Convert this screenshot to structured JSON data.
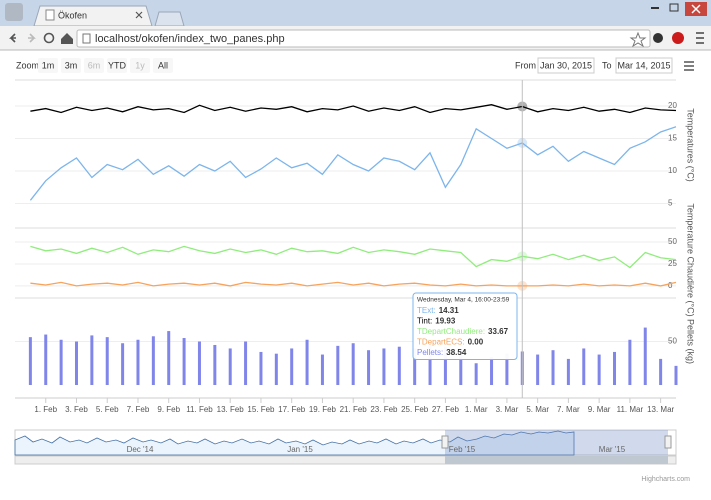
{
  "browser": {
    "tab_title": "Ökofen",
    "url": "localhost/okofen/index_two_panes.php"
  },
  "toolbar": {
    "zoom_label": "Zoom",
    "buttons": [
      "1m",
      "3m",
      "6m",
      "YTD",
      "1y",
      "All"
    ],
    "from_label": "From",
    "from": "Jan 30, 2015",
    "to_label": "To",
    "to": "Mar 14, 2015"
  },
  "chart_data": {
    "type": "line",
    "x": [
      "2015-01-31",
      "2015-02-01",
      "2015-02-02",
      "2015-02-03",
      "2015-02-04",
      "2015-02-05",
      "2015-02-06",
      "2015-02-07",
      "2015-02-08",
      "2015-02-09",
      "2015-02-10",
      "2015-02-11",
      "2015-02-12",
      "2015-02-13",
      "2015-02-14",
      "2015-02-15",
      "2015-02-16",
      "2015-02-17",
      "2015-02-18",
      "2015-02-19",
      "2015-02-20",
      "2015-02-21",
      "2015-02-22",
      "2015-02-23",
      "2015-02-24",
      "2015-02-25",
      "2015-02-26",
      "2015-02-27",
      "2015-02-28",
      "2015-03-01",
      "2015-03-02",
      "2015-03-03",
      "2015-03-04",
      "2015-03-05",
      "2015-03-06",
      "2015-03-07",
      "2015-03-08",
      "2015-03-09",
      "2015-03-10",
      "2015-03-11",
      "2015-03-12",
      "2015-03-13",
      "2015-03-14"
    ],
    "xlim": [
      "2015-01-30",
      "2015-03-14"
    ],
    "xticks": [
      {
        "value": "2015-02-01",
        "label": "1. Feb"
      },
      {
        "value": "2015-02-03",
        "label": "3. Feb"
      },
      {
        "value": "2015-02-05",
        "label": "5. Feb"
      },
      {
        "value": "2015-02-07",
        "label": "7. Feb"
      },
      {
        "value": "2015-02-09",
        "label": "9. Feb"
      },
      {
        "value": "2015-02-11",
        "label": "11. Feb"
      },
      {
        "value": "2015-02-13",
        "label": "13. Feb"
      },
      {
        "value": "2015-02-15",
        "label": "15. Feb"
      },
      {
        "value": "2015-02-17",
        "label": "17. Feb"
      },
      {
        "value": "2015-02-19",
        "label": "19. Feb"
      },
      {
        "value": "2015-02-21",
        "label": "21. Feb"
      },
      {
        "value": "2015-02-23",
        "label": "23. Feb"
      },
      {
        "value": "2015-02-25",
        "label": "25. Feb"
      },
      {
        "value": "2015-02-27",
        "label": "27. Feb"
      },
      {
        "value": "2015-03-01",
        "label": "1. Mar"
      },
      {
        "value": "2015-03-03",
        "label": "3. Mar"
      },
      {
        "value": "2015-03-05",
        "label": "5. Mar"
      },
      {
        "value": "2015-03-07",
        "label": "7. Mar"
      },
      {
        "value": "2015-03-09",
        "label": "9. Mar"
      },
      {
        "value": "2015-03-11",
        "label": "11. Mar"
      },
      {
        "value": "2015-03-13",
        "label": "13. Mar"
      }
    ],
    "panes": [
      {
        "y_label": "Temperatures (°C)",
        "ylim": [
          4,
          24
        ],
        "yticks": [
          5,
          10,
          15,
          20
        ],
        "grid": true,
        "series": [
          {
            "name": "TExt",
            "type": "line",
            "color": "#7cb5ec",
            "values": [
              5.5,
              8.5,
              10.5,
              12.0,
              9.0,
              11.0,
              10.2,
              11.8,
              9.5,
              10.8,
              9.2,
              11.0,
              10.0,
              11.5,
              9.0,
              10.3,
              12.0,
              10.5,
              11.2,
              9.5,
              12.5,
              11.0,
              10.0,
              12.0,
              11.5,
              10.2,
              12.8,
              7.5,
              11.0,
              16.5,
              15.0,
              13.5,
              14.31,
              12.5,
              13.8,
              11.5,
              13.0,
              12.0,
              11.0,
              13.5,
              14.5,
              16.0,
              16.8
            ]
          },
          {
            "name": "Tint",
            "type": "line",
            "color": "#000000",
            "values": [
              19.2,
              19.6,
              19.0,
              19.8,
              19.3,
              19.7,
              19.1,
              19.9,
              19.4,
              19.6,
              19.0,
              20.1,
              19.3,
              19.8,
              19.2,
              19.7,
              19.5,
              19.9,
              19.1,
              19.6,
              19.4,
              20.0,
              19.2,
              19.7,
              19.3,
              19.9,
              19.0,
              19.6,
              19.4,
              19.8,
              20.2,
              19.5,
              19.93,
              19.1,
              19.6,
              19.3,
              19.8,
              19.2,
              19.5,
              19.0,
              19.7,
              19.4,
              19.3
            ]
          }
        ]
      },
      {
        "y_label": "Temperature Chaudière (°C)",
        "ylim": [
          -7,
          66
        ],
        "yticks": [
          0,
          25,
          50
        ],
        "grid": true,
        "series": [
          {
            "name": "TDepartChaudiere",
            "type": "line",
            "color": "#90ed7d",
            "values": [
              45,
              40,
              42,
              37,
              43,
              38,
              44,
              36,
              41,
              39,
              45,
              40,
              37,
              42,
              38,
              41,
              36,
              43,
              39,
              40,
              37,
              44,
              38,
              41,
              39,
              36,
              42,
              40,
              38,
              22,
              30,
              28,
              33.67,
              31,
              36,
              30,
              35,
              29,
              33,
              21,
              38,
              32,
              30
            ]
          },
          {
            "name": "TDepartECS",
            "type": "line",
            "color": "#f7a35c",
            "values": [
              3,
              1,
              4,
              0,
              2,
              3,
              1,
              4,
              0,
              2,
              3,
              1,
              3,
              0,
              4,
              2,
              1,
              3,
              0,
              2,
              4,
              1,
              3,
              0,
              2,
              3,
              1,
              0,
              2,
              0,
              1,
              0,
              0,
              0,
              1,
              0,
              2,
              0,
              1,
              0,
              3,
              0,
              4
            ],
            "value_labels": [
              null,
              null,
              null,
              null,
              null,
              null,
              null,
              null,
              null,
              null,
              null,
              null,
              null,
              null,
              null,
              null,
              null,
              null,
              null,
              null,
              null,
              null,
              null,
              null,
              null,
              null,
              null,
              null,
              null,
              null,
              null,
              null,
              "0.00",
              null,
              null,
              null,
              null,
              null,
              null,
              null,
              null,
              null,
              null
            ]
          }
        ]
      },
      {
        "y_label": "Pellets (kg)",
        "ylim": [
          0,
          100
        ],
        "yticks": [
          50
        ],
        "grid": true,
        "series": [
          {
            "name": "Pellets",
            "type": "column",
            "color": "#8085e9",
            "values": [
              55,
              58,
              52,
              50,
              57,
              55,
              48,
              52,
              56,
              62,
              54,
              50,
              46,
              42,
              50,
              38,
              36,
              42,
              52,
              35,
              45,
              48,
              40,
              42,
              44,
              42,
              46,
              44,
              40,
              25,
              32,
              36,
              38.54,
              35,
              40,
              30,
              42,
              35,
              38,
              52,
              66,
              30,
              22
            ]
          }
        ]
      }
    ]
  },
  "tooltip": {
    "header": "Wednesday, Mar 4, 16:00-23:59",
    "x": "2015-03-04",
    "separator": ":"
  },
  "navigator": {
    "labels": [
      "Dec '14",
      "Jan '15",
      "Feb '15",
      "Mar '15"
    ]
  },
  "credits": "Highcharts.com"
}
